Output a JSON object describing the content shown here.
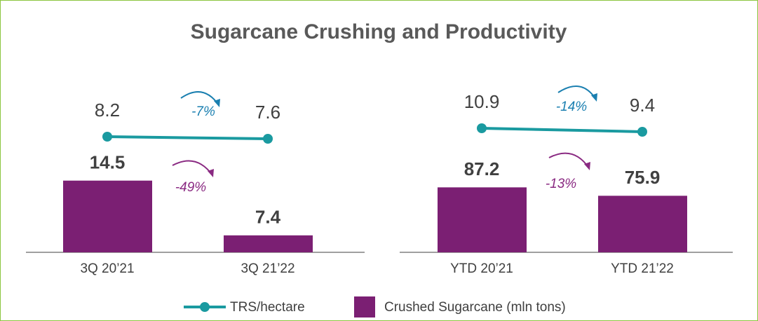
{
  "title": "Sugarcane Crushing and Productivity",
  "legend": [
    {
      "name": "TRS/hectare",
      "color": "#1a9aa0"
    },
    {
      "name": "Crushed Sugarcane (mln tons)",
      "color": "#7b1f73"
    }
  ],
  "chart_data": [
    {
      "type": "bar",
      "categories": [
        "3Q 20’21",
        "3Q 21’22"
      ],
      "bars": {
        "values": [
          14.5,
          7.4
        ]
      },
      "line": {
        "values": [
          8.2,
          7.6
        ]
      },
      "ylim": [
        5.2,
        25.2
      ],
      "y2lim": [
        -24.8,
        19.2
      ],
      "annotations": [
        {
          "text": "-7%",
          "color": "#1a7fb0"
        },
        {
          "text": "-49%",
          "color": "#8a2a82"
        }
      ]
    },
    {
      "type": "bar",
      "categories": [
        "YTD 20’21",
        "YTD 21’22"
      ],
      "bars": {
        "values": [
          87.2,
          75.9
        ]
      },
      "line": {
        "values": [
          10.9,
          9.4
        ]
      },
      "ylim": [
        0,
        207
      ],
      "y2lim": [
        -42.2,
        23.8
      ],
      "annotations": [
        {
          "text": "-14%",
          "color": "#1a7fb0"
        },
        {
          "text": "-13%",
          "color": "#8a2a82"
        }
      ]
    }
  ]
}
